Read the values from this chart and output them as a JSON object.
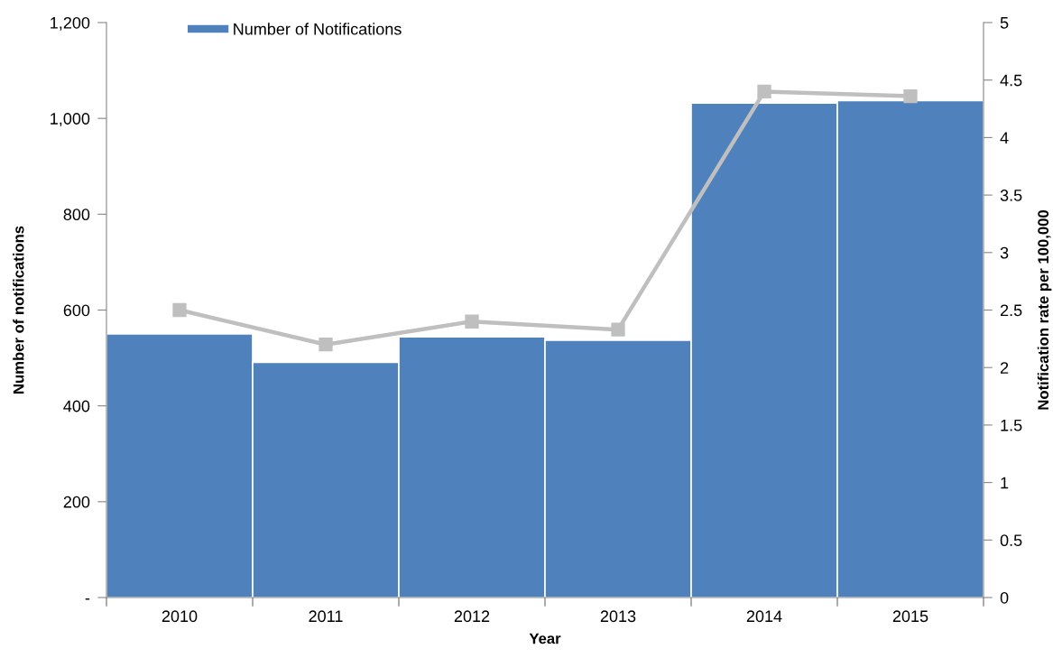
{
  "chart_data": {
    "type": "bar",
    "categories": [
      "2010",
      "2011",
      "2012",
      "2013",
      "2014",
      "2015"
    ],
    "xlabel": "Year",
    "ylabel": "Number of notifications",
    "y2label": "Notification rate per 100,000",
    "series": [
      {
        "name": "Number of Notifications",
        "color": "#4f81bd",
        "values": [
          550,
          491,
          544,
          537,
          1032,
          1037
        ]
      },
      {
        "type": "line",
        "axis": "y2",
        "color": "#bfbfbf",
        "values": [
          2.5,
          2.2,
          2.4,
          2.33,
          4.4,
          4.36
        ]
      }
    ],
    "ylim": [
      0,
      1200
    ],
    "yticks": [
      {
        "value": 0,
        "label": "-"
      },
      200,
      400,
      600,
      800,
      {
        "value": 1000,
        "label": "1,000"
      },
      {
        "value": 1200,
        "label": "1,200"
      }
    ],
    "y2lim": [
      0,
      5
    ],
    "y2ticks": [
      0,
      0.5,
      1,
      1.5,
      2,
      2.5,
      3,
      3.5,
      4,
      4.5,
      5
    ],
    "marker": "square",
    "line_style": "solid",
    "legend": "top left",
    "grid": false
  }
}
